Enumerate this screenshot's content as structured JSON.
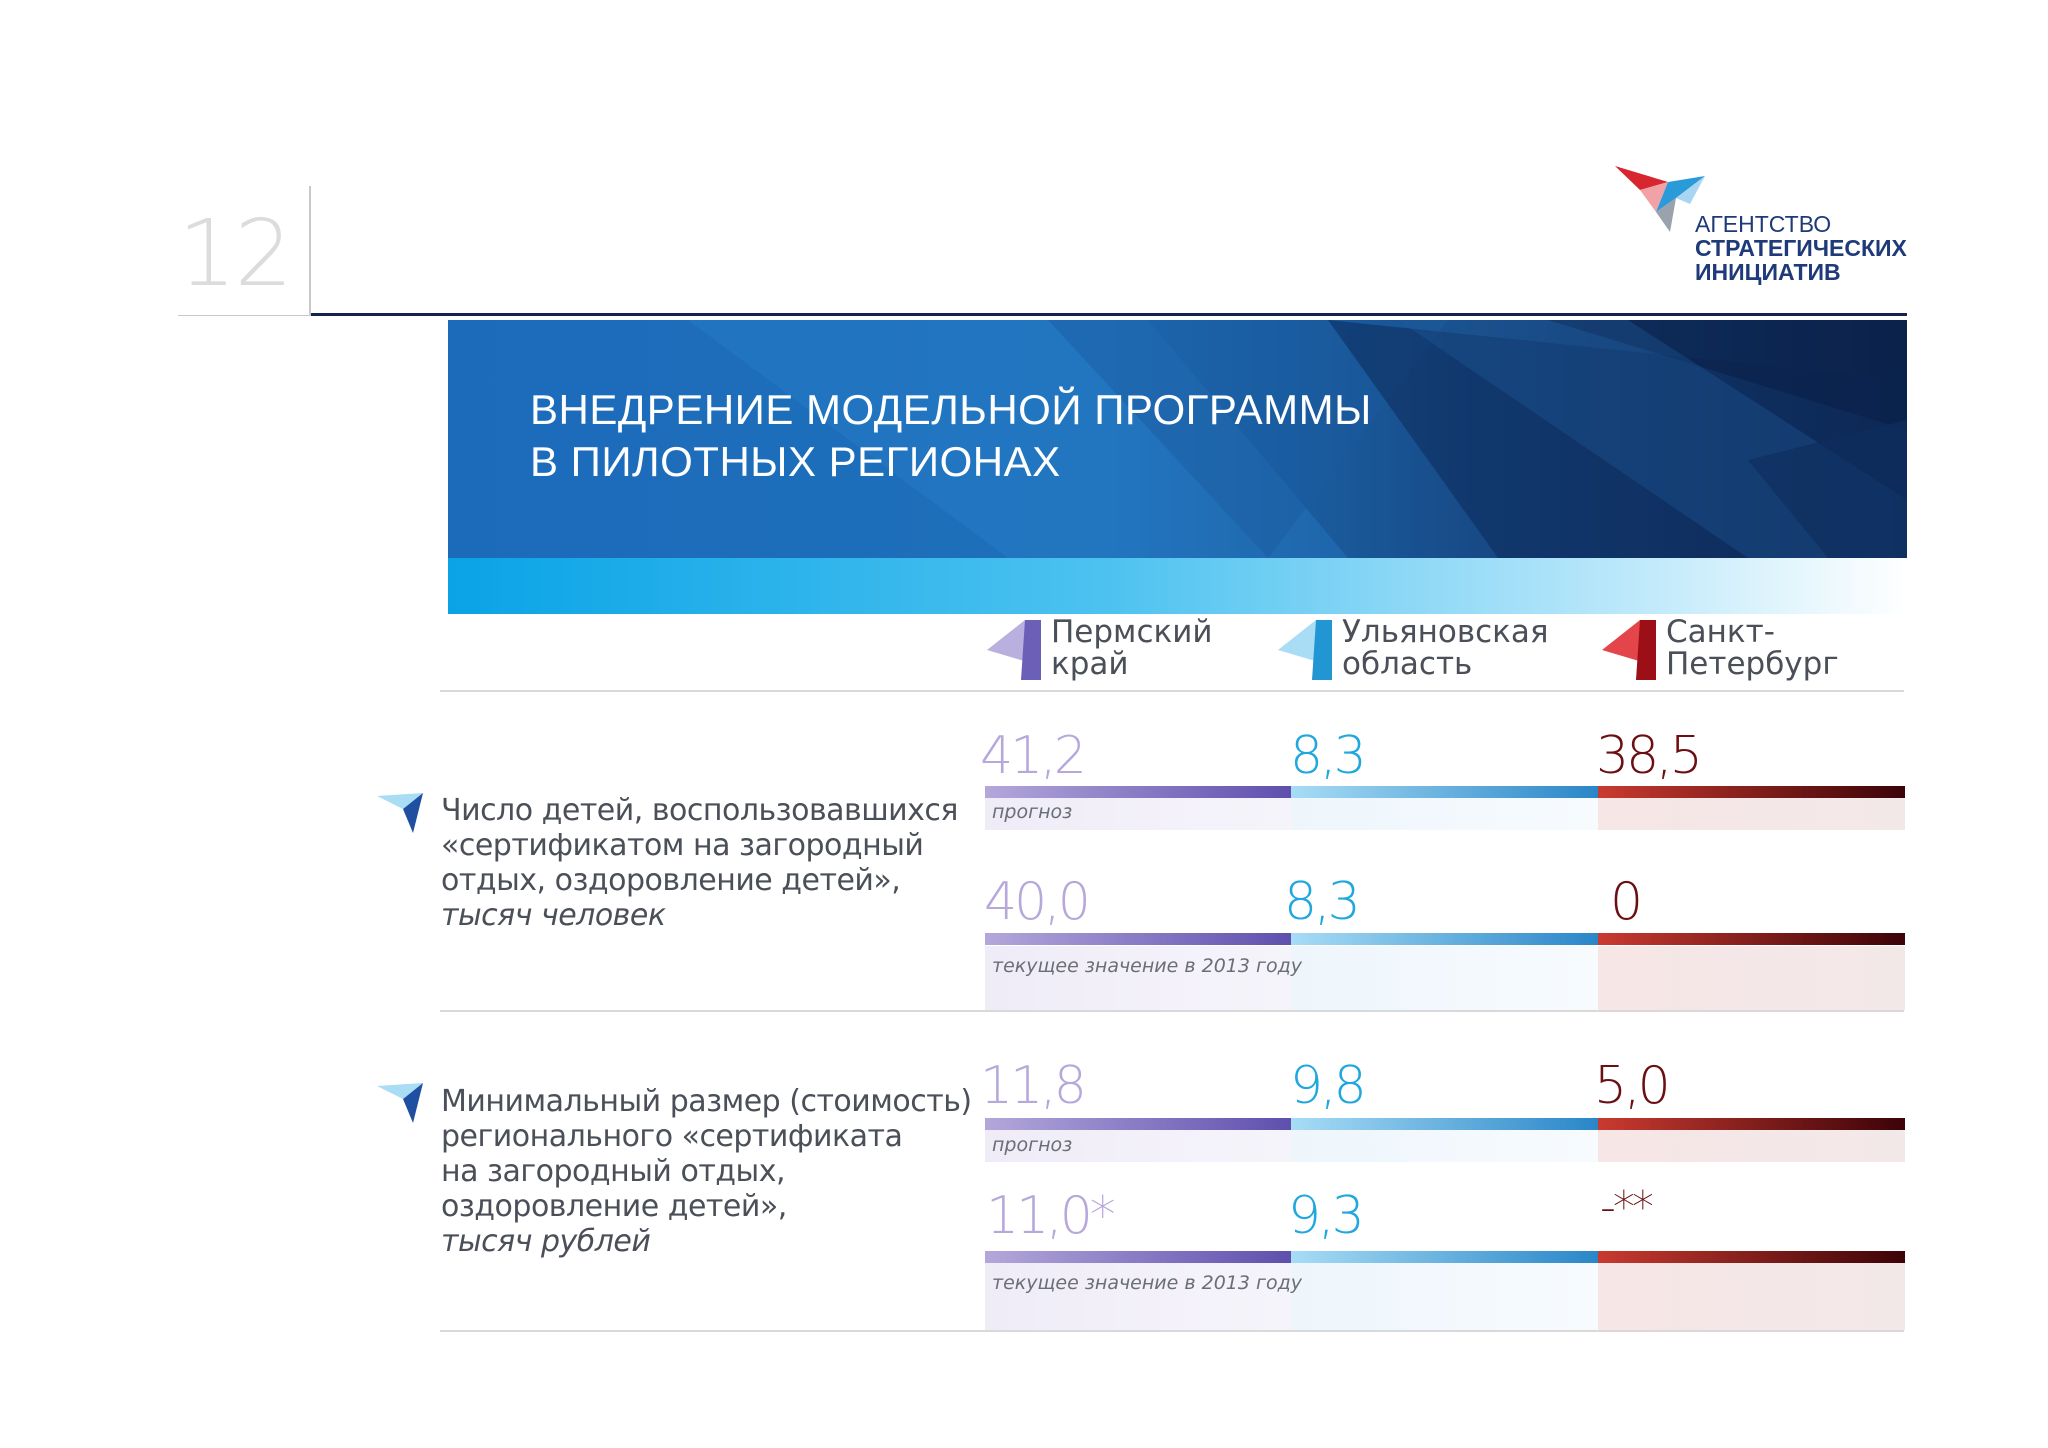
{
  "page_number": "12",
  "logo": {
    "line1": "АГЕНТСТВО",
    "line2": "СТРАТЕГИЧЕСКИХ",
    "line3": "ИНИЦИАТИВ"
  },
  "banner": {
    "title_line1": "ВНЕДРЕНИЕ МОДЕЛЬНОЙ ПРОГРАММЫ",
    "title_line2": "В ПИЛОТНЫХ РЕГИОНАХ"
  },
  "regions": [
    {
      "line1": "Пермский",
      "line2": "край",
      "color": "#7d6fc0"
    },
    {
      "line1": "Ульяновская",
      "line2": "область",
      "color": "#2ea6de"
    },
    {
      "line1": "Санкт-",
      "line2": "Петербург",
      "color": "#c4161c"
    }
  ],
  "indicators": [
    {
      "line1": "Число детей, воспользовавшихся",
      "line2": "«сертификатом на загородный",
      "line3": "отдых, оздоровление детей»,",
      "unit": "тысяч человек",
      "rows": [
        {
          "caption": "прогноз",
          "values": [
            "41,2",
            "8,3",
            "38,5"
          ]
        },
        {
          "caption": "текущее значение в 2013 году",
          "values": [
            "40,0",
            "8,3",
            "0"
          ]
        }
      ]
    },
    {
      "line1": "Минимальный размер (стоимость)",
      "line2": "регионального «сертификата",
      "line3": "на загородный отдых,",
      "line4": "оздоровление детей»,",
      "unit": "тысяч рублей",
      "rows": [
        {
          "caption": "прогноз",
          "values": [
            "11,8",
            "9,8",
            "5,0"
          ]
        },
        {
          "caption": "текущее значение в 2013 году",
          "values": [
            "11,0*",
            "9,3",
            "-**"
          ]
        }
      ]
    }
  ]
}
